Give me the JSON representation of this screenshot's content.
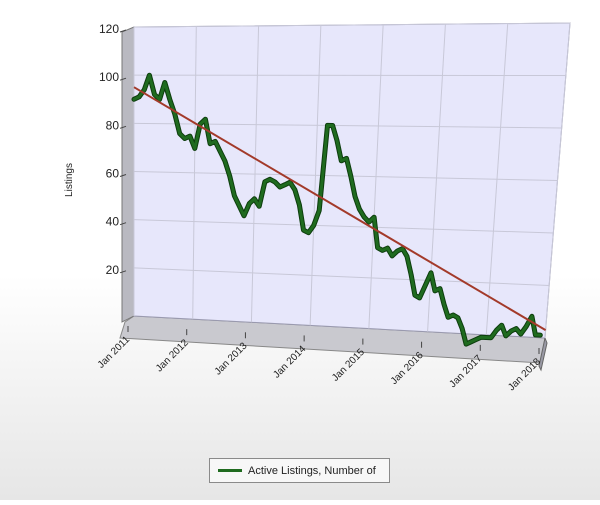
{
  "chart_data": {
    "type": "line",
    "title": "",
    "xlabel": "",
    "ylabel": "Listings",
    "ylim": [
      0,
      120
    ],
    "yticks": [
      20,
      40,
      60,
      80,
      100,
      120
    ],
    "ytick_labels": [
      "20",
      "40",
      "60",
      "80",
      "100",
      "120"
    ],
    "x_range": [
      2011.0,
      2018.0
    ],
    "xticks": [
      {
        "label": "Jan 2011",
        "value": 2011
      },
      {
        "label": "Jan 2012",
        "value": 2012
      },
      {
        "label": "Jan 2013",
        "value": 2013
      },
      {
        "label": "Jan 2014",
        "value": 2014
      },
      {
        "label": "Jan 2015",
        "value": 2015
      },
      {
        "label": "Jan 2016",
        "value": 2016
      },
      {
        "label": "Jan 2017",
        "value": 2017
      },
      {
        "label": "Jan 2018",
        "value": 2018
      }
    ],
    "grid": true,
    "legend_position": "bottom-center",
    "series": [
      {
        "name": "Active Listings, Number of",
        "color": "#1f6b1f",
        "x": [
          2011.0,
          2011.083,
          2011.167,
          2011.25,
          2011.333,
          2011.417,
          2011.5,
          2011.583,
          2011.667,
          2011.75,
          2011.833,
          2011.917,
          2012.0,
          2012.083,
          2012.167,
          2012.25,
          2012.333,
          2012.417,
          2012.5,
          2012.583,
          2012.667,
          2012.75,
          2012.833,
          2012.917,
          2013.0,
          2013.083,
          2013.167,
          2013.25,
          2013.333,
          2013.417,
          2013.5,
          2013.583,
          2013.667,
          2013.75,
          2013.833,
          2013.917,
          2014.0,
          2014.083,
          2014.167,
          2014.25,
          2014.333,
          2014.417,
          2014.5,
          2014.583,
          2014.667,
          2014.75,
          2014.833,
          2014.917,
          2015.0,
          2015.083,
          2015.167,
          2015.25,
          2015.333,
          2015.417,
          2015.5,
          2015.583,
          2015.667,
          2015.75,
          2015.833,
          2015.917,
          2016.0,
          2016.083,
          2016.167,
          2016.25,
          2016.333,
          2016.417,
          2016.5,
          2016.583,
          2016.667,
          2016.75,
          2016.833,
          2016.917,
          2017.0,
          2017.083,
          2017.167,
          2017.25,
          2017.333,
          2017.417,
          2017.5,
          2017.583,
          2017.667,
          2017.75,
          2017.833,
          2017.917
        ],
        "y": [
          90,
          91,
          94,
          100,
          92,
          90,
          97,
          90,
          84,
          76,
          74,
          75,
          70,
          80,
          82,
          72,
          73,
          69,
          65,
          59,
          51,
          47,
          43,
          48,
          50,
          47,
          57,
          58,
          57,
          55,
          56,
          57,
          54,
          48,
          38,
          37,
          40,
          46,
          80,
          80,
          74,
          66,
          67,
          60,
          52,
          47,
          44,
          42,
          44,
          32,
          31,
          32,
          29,
          31,
          32,
          29,
          22,
          14,
          13,
          18,
          23,
          16,
          17,
          11,
          6,
          7,
          6,
          2,
          -4,
          -3,
          -2,
          -1,
          -1,
          -1,
          2,
          4,
          0,
          2,
          3,
          1,
          4,
          8,
          1,
          1
        ]
      },
      {
        "name": "",
        "color": "#a33a2a",
        "x": [
          2011.0,
          2018.0
        ],
        "y": [
          95,
          3
        ]
      }
    ]
  }
}
